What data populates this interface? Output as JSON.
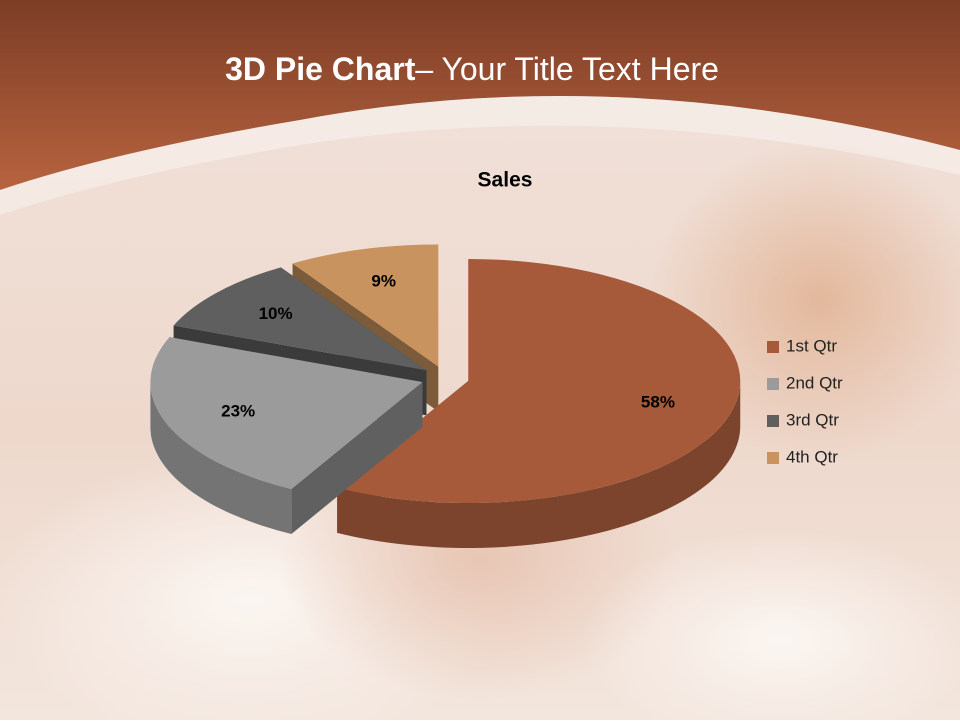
{
  "header": {
    "title_bold": "3D Pie Chart",
    "title_rest": "– Your Title Text Here"
  },
  "chart_data": {
    "type": "pie3d",
    "title": "Sales",
    "categories": [
      "1st Qtr",
      "2nd Qtr",
      "3rd Qtr",
      "4th Qtr"
    ],
    "values": [
      58,
      23,
      10,
      9
    ],
    "value_labels": [
      "58%",
      "23%",
      "10%",
      "9%"
    ],
    "colors": [
      "#a65a3a",
      "#9b9b9b",
      "#5f5f5f",
      "#c8935e"
    ],
    "legend": "right"
  }
}
